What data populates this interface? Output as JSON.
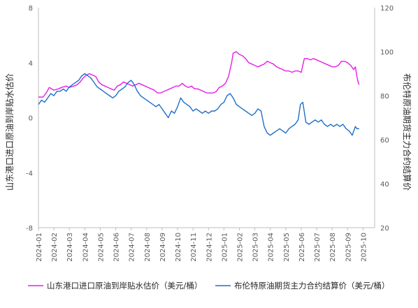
{
  "chart_data": {
    "type": "line",
    "x_ticks": [
      "2024-01",
      "2024-02",
      "2024-03",
      "2024-04",
      "2024-05",
      "2024-06",
      "2024-07",
      "2024-08",
      "2024-09",
      "2024-10",
      "2024-11",
      "2024-12",
      "2025-01",
      "2025-02",
      "2025-03",
      "2025-04",
      "2025-05",
      "2025-06",
      "2025-07",
      "2025-08",
      "2025-09",
      "2025-10"
    ],
    "y_left": {
      "label": "山东港口进口原油到岸贴水估价",
      "min": -8,
      "max": 8,
      "ticks": [
        "8",
        "4",
        "0",
        "-4",
        "-8"
      ]
    },
    "y_right": {
      "label": "布伦特原油期货主力合约结算价",
      "min": 20,
      "max": 120,
      "ticks": [
        "120",
        "100",
        "80",
        "60",
        "40",
        "20"
      ]
    },
    "series": [
      {
        "name": "山东港口进口原油到岸贴水估价（美元/桶）",
        "axis": "left",
        "color": "#e61ee6",
        "points": [
          [
            0.0,
            1.5
          ],
          [
            0.3,
            1.5
          ],
          [
            0.5,
            1.8
          ],
          [
            0.7,
            2.2
          ],
          [
            1.0,
            2.0
          ],
          [
            1.3,
            2.1
          ],
          [
            1.5,
            2.2
          ],
          [
            1.8,
            2.3
          ],
          [
            2.0,
            2.2
          ],
          [
            2.3,
            2.3
          ],
          [
            2.5,
            2.4
          ],
          [
            2.7,
            2.6
          ],
          [
            2.9,
            2.9
          ],
          [
            3.1,
            3.1
          ],
          [
            3.3,
            3.2
          ],
          [
            3.5,
            3.1
          ],
          [
            3.7,
            3.0
          ],
          [
            3.9,
            2.6
          ],
          [
            4.1,
            2.4
          ],
          [
            4.3,
            2.3
          ],
          [
            4.5,
            2.2
          ],
          [
            4.7,
            2.1
          ],
          [
            4.9,
            2.0
          ],
          [
            5.1,
            2.3
          ],
          [
            5.3,
            2.4
          ],
          [
            5.5,
            2.6
          ],
          [
            5.7,
            2.5
          ],
          [
            5.9,
            2.4
          ],
          [
            6.1,
            2.3
          ],
          [
            6.3,
            2.4
          ],
          [
            6.5,
            2.5
          ],
          [
            6.7,
            2.4
          ],
          [
            6.9,
            2.3
          ],
          [
            7.1,
            2.2
          ],
          [
            7.3,
            2.1
          ],
          [
            7.5,
            2.0
          ],
          [
            7.7,
            1.8
          ],
          [
            7.9,
            1.8
          ],
          [
            8.1,
            1.9
          ],
          [
            8.3,
            2.0
          ],
          [
            8.5,
            2.1
          ],
          [
            8.7,
            2.2
          ],
          [
            8.9,
            2.3
          ],
          [
            9.1,
            2.3
          ],
          [
            9.3,
            2.5
          ],
          [
            9.5,
            2.3
          ],
          [
            9.7,
            2.2
          ],
          [
            9.9,
            2.3
          ],
          [
            10.1,
            2.1
          ],
          [
            10.3,
            2.1
          ],
          [
            10.5,
            2.0
          ],
          [
            10.7,
            1.9
          ],
          [
            10.9,
            1.8
          ],
          [
            11.1,
            1.8
          ],
          [
            11.3,
            1.8
          ],
          [
            11.5,
            1.9
          ],
          [
            11.7,
            2.2
          ],
          [
            11.9,
            2.3
          ],
          [
            12.1,
            2.5
          ],
          [
            12.3,
            3.0
          ],
          [
            12.4,
            3.5
          ],
          [
            12.5,
            4.0
          ],
          [
            12.6,
            4.7
          ],
          [
            12.8,
            4.8
          ],
          [
            13.0,
            4.6
          ],
          [
            13.2,
            4.5
          ],
          [
            13.4,
            4.3
          ],
          [
            13.6,
            4.0
          ],
          [
            13.8,
            3.9
          ],
          [
            14.0,
            3.8
          ],
          [
            14.2,
            3.7
          ],
          [
            14.4,
            3.8
          ],
          [
            14.6,
            3.9
          ],
          [
            14.8,
            4.1
          ],
          [
            15.0,
            4.0
          ],
          [
            15.2,
            3.9
          ],
          [
            15.4,
            3.7
          ],
          [
            15.6,
            3.6
          ],
          [
            15.8,
            3.5
          ],
          [
            16.0,
            3.4
          ],
          [
            16.2,
            3.4
          ],
          [
            16.4,
            3.3
          ],
          [
            16.6,
            3.4
          ],
          [
            16.8,
            3.4
          ],
          [
            17.0,
            3.3
          ],
          [
            17.2,
            4.3
          ],
          [
            17.4,
            4.3
          ],
          [
            17.6,
            4.2
          ],
          [
            17.8,
            4.3
          ],
          [
            18.0,
            4.2
          ],
          [
            18.2,
            4.1
          ],
          [
            18.4,
            4.0
          ],
          [
            18.6,
            3.9
          ],
          [
            18.8,
            3.8
          ],
          [
            19.0,
            3.7
          ],
          [
            19.2,
            3.7
          ],
          [
            19.4,
            3.8
          ],
          [
            19.6,
            4.1
          ],
          [
            19.8,
            4.1
          ],
          [
            20.0,
            4.0
          ],
          [
            20.2,
            3.8
          ],
          [
            20.4,
            3.5
          ],
          [
            20.5,
            3.7
          ],
          [
            20.6,
            3.0
          ],
          [
            20.7,
            2.5
          ],
          [
            20.75,
            2.4
          ]
        ]
      },
      {
        "name": "布伦特原油期货主力合约结算价（美元/桶）",
        "axis": "right",
        "color": "#1f6fc9",
        "points": [
          [
            0.0,
            76
          ],
          [
            0.2,
            78
          ],
          [
            0.4,
            77
          ],
          [
            0.6,
            79
          ],
          [
            0.8,
            81
          ],
          [
            1.0,
            80
          ],
          [
            1.2,
            82
          ],
          [
            1.4,
            82
          ],
          [
            1.6,
            83
          ],
          [
            1.8,
            82
          ],
          [
            2.0,
            84
          ],
          [
            2.2,
            85
          ],
          [
            2.4,
            86
          ],
          [
            2.6,
            87
          ],
          [
            2.8,
            89
          ],
          [
            3.0,
            90
          ],
          [
            3.2,
            89
          ],
          [
            3.4,
            88
          ],
          [
            3.6,
            86
          ],
          [
            3.8,
            84
          ],
          [
            4.0,
            83
          ],
          [
            4.2,
            82
          ],
          [
            4.4,
            81
          ],
          [
            4.6,
            80
          ],
          [
            4.8,
            79
          ],
          [
            5.0,
            80
          ],
          [
            5.2,
            82
          ],
          [
            5.4,
            83
          ],
          [
            5.6,
            84
          ],
          [
            5.8,
            86
          ],
          [
            6.0,
            87
          ],
          [
            6.2,
            85
          ],
          [
            6.4,
            82
          ],
          [
            6.6,
            80
          ],
          [
            6.8,
            79
          ],
          [
            7.0,
            78
          ],
          [
            7.2,
            77
          ],
          [
            7.4,
            76
          ],
          [
            7.6,
            75
          ],
          [
            7.8,
            76
          ],
          [
            8.0,
            74
          ],
          [
            8.2,
            72
          ],
          [
            8.4,
            70
          ],
          [
            8.6,
            73
          ],
          [
            8.8,
            72
          ],
          [
            9.0,
            75
          ],
          [
            9.2,
            79
          ],
          [
            9.4,
            77
          ],
          [
            9.6,
            76
          ],
          [
            9.8,
            75
          ],
          [
            10.0,
            73
          ],
          [
            10.2,
            74
          ],
          [
            10.4,
            73
          ],
          [
            10.6,
            72
          ],
          [
            10.8,
            73
          ],
          [
            11.0,
            72
          ],
          [
            11.2,
            73
          ],
          [
            11.4,
            73
          ],
          [
            11.6,
            74
          ],
          [
            11.8,
            76
          ],
          [
            12.0,
            77
          ],
          [
            12.2,
            80
          ],
          [
            12.4,
            81
          ],
          [
            12.6,
            79
          ],
          [
            12.8,
            76
          ],
          [
            13.0,
            75
          ],
          [
            13.2,
            74
          ],
          [
            13.4,
            73
          ],
          [
            13.6,
            72
          ],
          [
            13.8,
            71
          ],
          [
            14.0,
            72
          ],
          [
            14.2,
            74
          ],
          [
            14.4,
            73
          ],
          [
            14.6,
            66
          ],
          [
            14.8,
            63
          ],
          [
            15.0,
            62
          ],
          [
            15.2,
            63
          ],
          [
            15.4,
            64
          ],
          [
            15.6,
            65
          ],
          [
            15.8,
            64
          ],
          [
            16.0,
            63
          ],
          [
            16.2,
            65
          ],
          [
            16.4,
            66
          ],
          [
            16.6,
            67
          ],
          [
            16.8,
            69
          ],
          [
            16.95,
            76
          ],
          [
            17.1,
            77
          ],
          [
            17.3,
            68
          ],
          [
            17.5,
            67
          ],
          [
            17.7,
            68
          ],
          [
            17.9,
            69
          ],
          [
            18.1,
            68
          ],
          [
            18.3,
            69
          ],
          [
            18.5,
            67
          ],
          [
            18.7,
            66
          ],
          [
            18.9,
            67
          ],
          [
            19.1,
            66
          ],
          [
            19.3,
            67
          ],
          [
            19.5,
            66
          ],
          [
            19.7,
            67
          ],
          [
            19.9,
            65
          ],
          [
            20.1,
            64
          ],
          [
            20.3,
            62
          ],
          [
            20.5,
            66
          ],
          [
            20.6,
            65
          ],
          [
            20.75,
            65
          ]
        ]
      }
    ]
  }
}
